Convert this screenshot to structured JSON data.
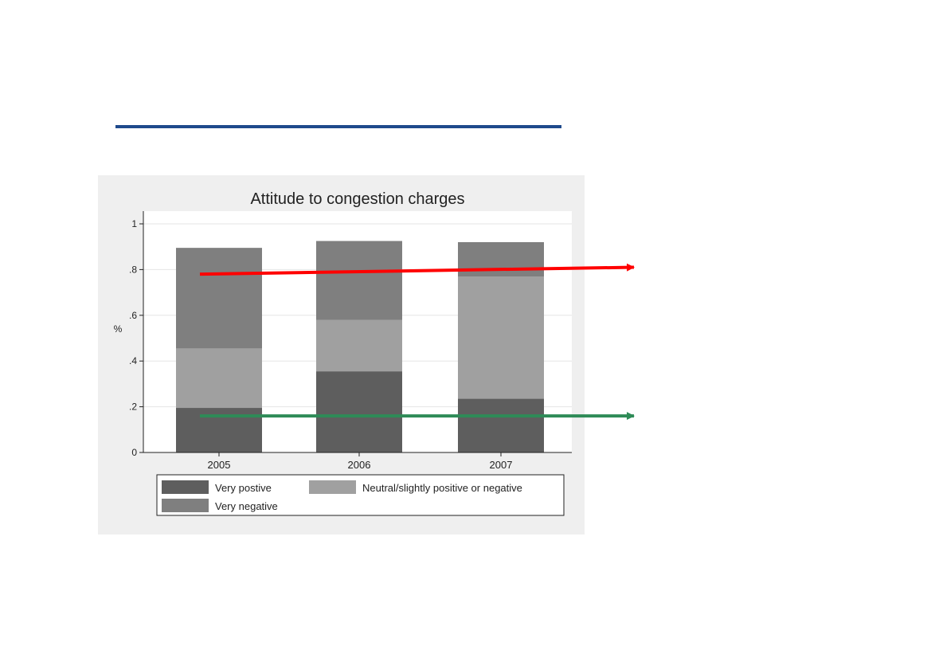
{
  "chart_data": {
    "type": "bar",
    "stacked": true,
    "title": "Attitude to congestion charges",
    "xlabel": "",
    "ylabel": "%",
    "categories": [
      "2005",
      "2006",
      "2007"
    ],
    "ylim": [
      0,
      1
    ],
    "yticks": [
      0,
      0.2,
      0.4,
      0.6,
      0.8,
      1
    ],
    "ytick_labels": [
      "0",
      ".2",
      ".4",
      ".6",
      ".8",
      "1"
    ],
    "grid": true,
    "legend_position": "bottom",
    "series": [
      {
        "name": "Very postive",
        "values": [
          0.195,
          0.355,
          0.235
        ],
        "color": "#5e5e5e"
      },
      {
        "name": "Neutral/slightly positive or negative",
        "values": [
          0.26,
          0.225,
          0.535
        ],
        "color": "#a0a0a0"
      },
      {
        "name": "Very negative",
        "values": [
          0.44,
          0.345,
          0.15
        ],
        "color": "#7f7f7f"
      }
    ],
    "annotations": [
      {
        "type": "arrow",
        "color": "#ff0000",
        "from": [
          2005,
          0.78
        ],
        "to": [
          2007,
          0.81
        ]
      },
      {
        "type": "arrow",
        "color": "#2e8b57",
        "from": [
          2005,
          0.16
        ],
        "to": [
          2007,
          0.16
        ]
      }
    ]
  },
  "colors": {
    "header_rule": "#1f4a8c",
    "chart_background": "#efefef",
    "plot_background": "#ffffff"
  }
}
